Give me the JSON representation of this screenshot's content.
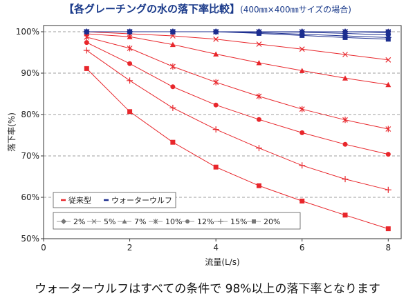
{
  "header": {
    "title": "【各グレーチングの水の落下率比較】",
    "subtitle": "(400㎜×400㎜サイズの場合)"
  },
  "caption": "ウォーターウルフはすべての条件で 98%以上の落下率となります",
  "colors": {
    "standard": "#e8262b",
    "wolf": "#1b2d8f",
    "grid": "#7f7f7f",
    "axis": "#333333"
  },
  "chart_data": {
    "type": "line",
    "xlabel": "流量(L/s)",
    "ylabel": "落下率(%)",
    "xlim": [
      0,
      8.3
    ],
    "ylim": [
      50,
      101.5
    ],
    "xticks": [
      0,
      2,
      4,
      6,
      8
    ],
    "xtick_labels": [
      "0",
      "2",
      "4",
      "6",
      "8"
    ],
    "yticks": [
      50,
      60,
      70,
      80,
      90,
      100
    ],
    "ytick_labels": [
      "50%",
      "60%",
      "70%",
      "80%",
      "90%",
      "100%"
    ],
    "grid": "horizontal dashed",
    "x": [
      1,
      2,
      3,
      4,
      5,
      6,
      7,
      8
    ],
    "legend_types": [
      {
        "key": "standard",
        "label": "従来型"
      },
      {
        "key": "wolf",
        "label": "ウォーターウルフ"
      }
    ],
    "legend_slopes": [
      {
        "label": "2%",
        "marker": "diamond"
      },
      {
        "label": "5%",
        "marker": "x"
      },
      {
        "label": "7%",
        "marker": "triangle"
      },
      {
        "label": "10%",
        "marker": "star"
      },
      {
        "label": "12%",
        "marker": "circle"
      },
      {
        "label": "15%",
        "marker": "plus"
      },
      {
        "label": "20%",
        "marker": "square"
      }
    ],
    "series": [
      {
        "group": "standard",
        "slope": "2%",
        "marker": "diamond",
        "values": [
          100,
          100,
          100,
          100,
          100,
          100,
          100,
          100
        ]
      },
      {
        "group": "standard",
        "slope": "5%",
        "marker": "x",
        "values": [
          100,
          99.5,
          99,
          98.2,
          97,
          95.8,
          94.5,
          93.2
        ]
      },
      {
        "group": "standard",
        "slope": "7%",
        "marker": "triangle",
        "values": [
          99.5,
          98.8,
          96.9,
          94.6,
          92.5,
          90.6,
          88.8,
          87.2
        ]
      },
      {
        "group": "standard",
        "slope": "10%",
        "marker": "star",
        "values": [
          98.7,
          96,
          91.6,
          87.8,
          84.4,
          81.3,
          78.7,
          76.5
        ]
      },
      {
        "group": "standard",
        "slope": "12%",
        "marker": "circle",
        "values": [
          97.4,
          92.3,
          86.7,
          82.3,
          78.8,
          75.6,
          72.8,
          70.4
        ]
      },
      {
        "group": "standard",
        "slope": "15%",
        "marker": "plus",
        "values": [
          95.5,
          88.2,
          81.6,
          76.4,
          71.9,
          67.7,
          64.4,
          61.8
        ]
      },
      {
        "group": "standard",
        "slope": "20%",
        "marker": "square",
        "values": [
          91.1,
          80.7,
          73.3,
          67.3,
          62.8,
          59.1,
          55.7,
          52.4
        ]
      },
      {
        "group": "wolf",
        "slope": "2%",
        "marker": "diamond",
        "values": [
          100,
          100,
          100,
          100,
          100,
          100,
          100,
          100
        ]
      },
      {
        "group": "wolf",
        "slope": "5%",
        "marker": "x",
        "values": [
          100,
          100,
          100,
          100,
          100,
          100,
          100,
          100
        ]
      },
      {
        "group": "wolf",
        "slope": "7%",
        "marker": "triangle",
        "values": [
          100,
          100,
          100,
          100,
          100,
          100,
          100,
          100
        ]
      },
      {
        "group": "wolf",
        "slope": "10%",
        "marker": "star",
        "values": [
          100,
          100,
          100,
          100,
          100,
          100,
          100,
          99.8
        ]
      },
      {
        "group": "wolf",
        "slope": "12%",
        "marker": "circle",
        "values": [
          100,
          100,
          100,
          100,
          100,
          99.9,
          99.6,
          99.2
        ]
      },
      {
        "group": "wolf",
        "slope": "15%",
        "marker": "plus",
        "values": [
          100,
          100,
          100,
          100,
          99.8,
          99.4,
          99,
          98.6
        ]
      },
      {
        "group": "wolf",
        "slope": "20%",
        "marker": "square",
        "values": [
          100,
          100,
          100,
          100,
          99.6,
          99.1,
          98.6,
          98.2
        ]
      }
    ]
  }
}
